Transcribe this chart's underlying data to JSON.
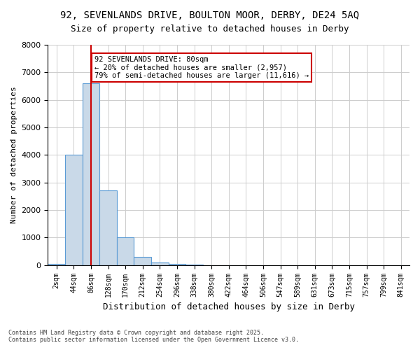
{
  "title_line1": "92, SEVENLANDS DRIVE, BOULTON MOOR, DERBY, DE24 5AQ",
  "title_line2": "Size of property relative to detached houses in Derby",
  "xlabel": "Distribution of detached houses by size in Derby",
  "ylabel": "Number of detached properties",
  "categories": [
    "2sqm",
    "44sqm",
    "86sqm",
    "128sqm",
    "170sqm",
    "212sqm",
    "254sqm",
    "296sqm",
    "338sqm",
    "380sqm",
    "422sqm",
    "464sqm",
    "506sqm",
    "547sqm",
    "589sqm",
    "631sqm",
    "673sqm",
    "715sqm",
    "757sqm",
    "799sqm",
    "841sqm"
  ],
  "values": [
    50,
    4000,
    6600,
    2700,
    1000,
    300,
    100,
    50,
    10,
    0,
    0,
    0,
    0,
    0,
    0,
    0,
    0,
    0,
    0,
    0,
    0
  ],
  "bar_color": "#c9d9e8",
  "bar_edge_color": "#5b9bd5",
  "redline_index": 2,
  "annotation_text": "92 SEVENLANDS DRIVE: 80sqm\n← 20% of detached houses are smaller (2,957)\n79% of semi-detached houses are larger (11,616) →",
  "annotation_box_color": "#ffffff",
  "annotation_box_edge": "#cc0000",
  "redline_color": "#cc0000",
  "ylim": [
    0,
    8000
  ],
  "yticks": [
    0,
    1000,
    2000,
    3000,
    4000,
    5000,
    6000,
    7000,
    8000
  ],
  "grid_color": "#cccccc",
  "background_color": "#ffffff",
  "footnote": "Contains HM Land Registry data © Crown copyright and database right 2025.\nContains public sector information licensed under the Open Government Licence v3.0."
}
